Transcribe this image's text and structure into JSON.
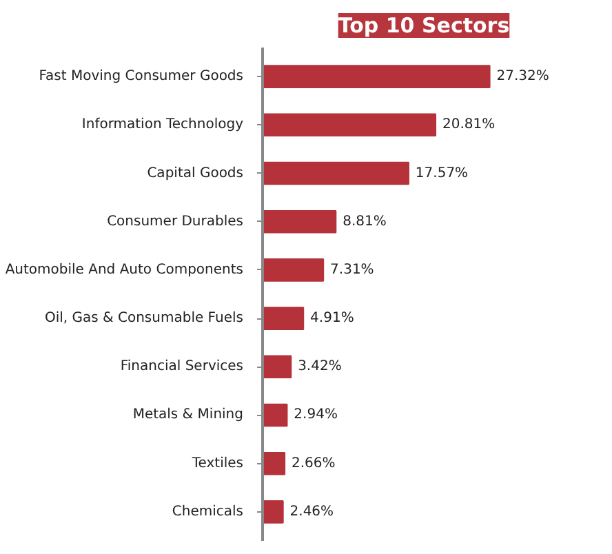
{
  "chart_data": {
    "type": "bar",
    "orientation": "horizontal",
    "title": "Top 10 Sectors",
    "categories": [
      "Fast Moving Consumer Goods",
      "Information Technology",
      "Capital Goods",
      "Consumer Durables",
      "Automobile And Auto Components",
      "Oil, Gas & Consumable Fuels",
      "Financial Services",
      "Metals & Mining",
      "Textiles",
      "Chemicals"
    ],
    "values": [
      27.32,
      20.81,
      17.57,
      8.81,
      7.31,
      4.91,
      3.42,
      2.94,
      2.66,
      2.46
    ],
    "value_labels": [
      "27.32%",
      "20.81%",
      "17.57%",
      "8.81%",
      "7.31%",
      "4.91%",
      "3.42%",
      "2.94%",
      "2.66%",
      "2.46%"
    ],
    "color": "#b5323a",
    "grid": false
  }
}
